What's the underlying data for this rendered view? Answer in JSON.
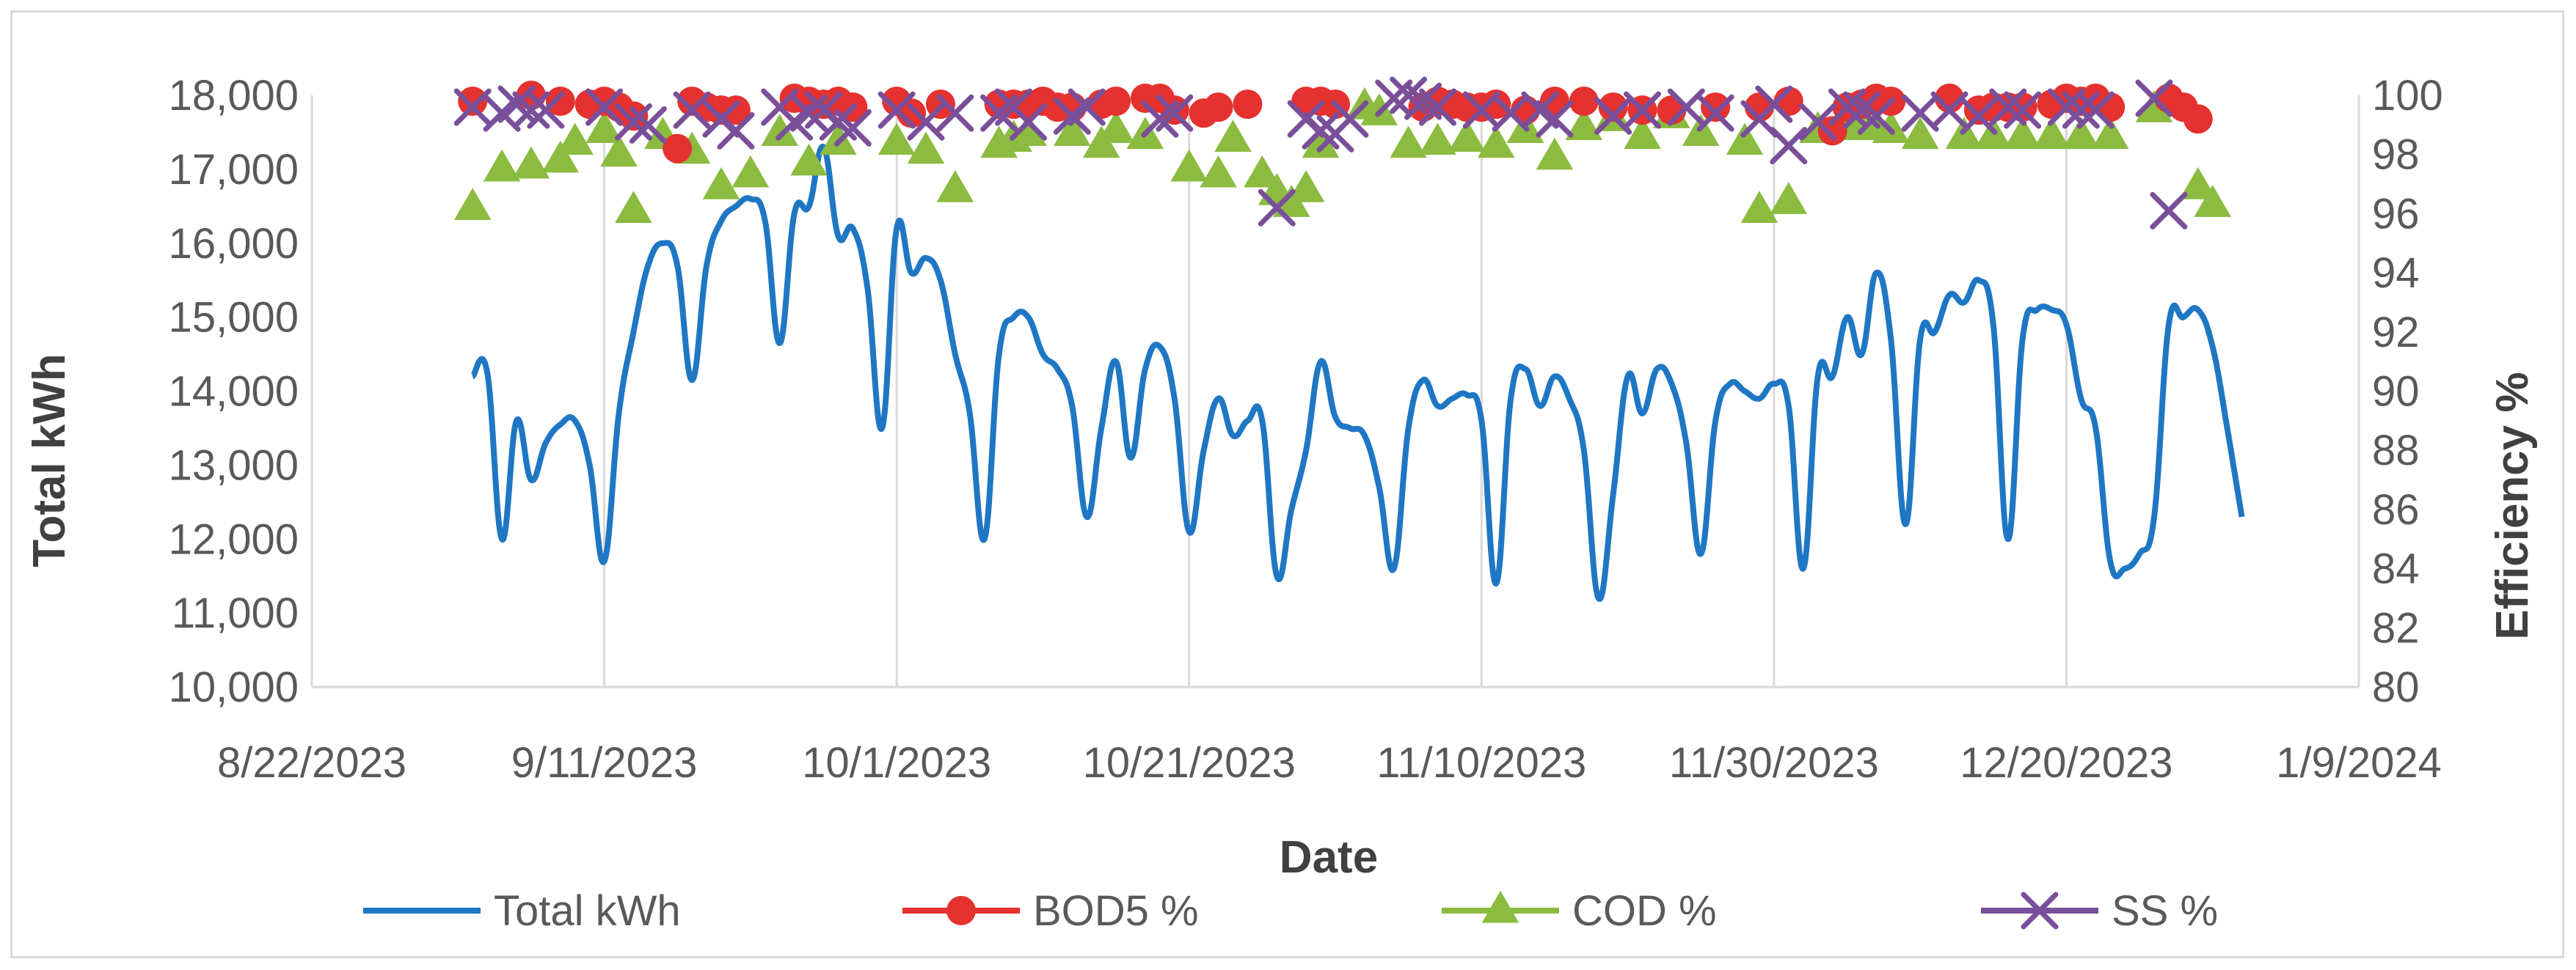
{
  "chart_data": {
    "type": "line",
    "title": "",
    "xlabel": "Date",
    "ylabel": "Total kWh",
    "y2label": "Efficiency %",
    "xlim": [
      "2023-08-22",
      "2024-01-09"
    ],
    "ylim": [
      10000,
      18000
    ],
    "y2lim": [
      80,
      100
    ],
    "grid": "vertical",
    "legend": "bottom",
    "x_ticks": [
      "8/22/2023",
      "9/11/2023",
      "10/1/2023",
      "10/21/2023",
      "11/10/2023",
      "11/30/2023",
      "12/20/2023",
      "1/9/2024"
    ],
    "y_ticks": [
      "10,000",
      "11,000",
      "12,000",
      "13,000",
      "14,000",
      "15,000",
      "16,000",
      "17,000",
      "18,000"
    ],
    "y2_ticks": [
      "80",
      "82",
      "84",
      "86",
      "88",
      "90",
      "92",
      "94",
      "96",
      "98",
      "100"
    ],
    "colors": {
      "kwh": "#1f77c4",
      "bod": "#e5312f",
      "cod": "#8bbb3f",
      "ss": "#7a4f9a",
      "grid": "#d9d9d9"
    },
    "series": [
      {
        "name": "Total kWh",
        "marker": "line",
        "x": [
          "2023-09-02",
          "2023-09-03",
          "2023-09-04",
          "2023-09-05",
          "2023-09-06",
          "2023-09-07",
          "2023-09-08",
          "2023-09-09",
          "2023-09-10",
          "2023-09-11",
          "2023-09-12",
          "2023-09-13",
          "2023-09-14",
          "2023-09-15",
          "2023-09-16",
          "2023-09-17",
          "2023-09-18",
          "2023-09-19",
          "2023-09-20",
          "2023-09-21",
          "2023-09-22",
          "2023-09-23",
          "2023-09-24",
          "2023-09-25",
          "2023-09-26",
          "2023-09-27",
          "2023-09-28",
          "2023-09-29",
          "2023-09-30",
          "2023-10-01",
          "2023-10-02",
          "2023-10-03",
          "2023-10-04",
          "2023-10-05",
          "2023-10-06",
          "2023-10-07",
          "2023-10-08",
          "2023-10-09",
          "2023-10-10",
          "2023-10-11",
          "2023-10-12",
          "2023-10-13",
          "2023-10-14",
          "2023-10-15",
          "2023-10-16",
          "2023-10-17",
          "2023-10-18",
          "2023-10-19",
          "2023-10-20",
          "2023-10-21",
          "2023-10-22",
          "2023-10-23",
          "2023-10-24",
          "2023-10-25",
          "2023-10-26",
          "2023-10-27",
          "2023-10-28",
          "2023-10-29",
          "2023-10-30",
          "2023-10-31",
          "2023-11-01",
          "2023-11-02",
          "2023-11-03",
          "2023-11-04",
          "2023-11-05",
          "2023-11-06",
          "2023-11-07",
          "2023-11-08",
          "2023-11-09",
          "2023-11-10",
          "2023-11-11",
          "2023-11-12",
          "2023-11-13",
          "2023-11-14",
          "2023-11-15",
          "2023-11-16",
          "2023-11-17",
          "2023-11-18",
          "2023-11-19",
          "2023-11-20",
          "2023-11-21",
          "2023-11-22",
          "2023-11-23",
          "2023-11-24",
          "2023-11-25",
          "2023-11-26",
          "2023-11-27",
          "2023-11-28",
          "2023-11-29",
          "2023-11-30",
          "2023-12-01",
          "2023-12-02",
          "2023-12-03",
          "2023-12-04",
          "2023-12-05",
          "2023-12-06",
          "2023-12-07",
          "2023-12-08",
          "2023-12-09",
          "2023-12-10",
          "2023-12-11",
          "2023-12-12",
          "2023-12-13",
          "2023-12-14",
          "2023-12-15",
          "2023-12-16",
          "2023-12-17",
          "2023-12-18",
          "2023-12-19",
          "2023-12-20",
          "2023-12-21",
          "2023-12-22",
          "2023-12-23",
          "2023-12-24",
          "2023-12-25",
          "2023-12-26",
          "2023-12-27",
          "2023-12-28",
          "2023-12-29",
          "2023-12-30",
          "2023-12-31",
          "2024-01-01"
        ],
        "values": [
          14200,
          14250,
          12000,
          13600,
          12800,
          13300,
          13550,
          13600,
          13000,
          11700,
          13700,
          14800,
          15700,
          16000,
          15700,
          14150,
          15700,
          16300,
          16500,
          16600,
          16300,
          14650,
          16400,
          16500,
          17300,
          16100,
          16200,
          15400,
          13500,
          16200,
          15600,
          15800,
          15500,
          14500,
          13700,
          12000,
          14500,
          15000,
          15000,
          14500,
          14300,
          13800,
          12300,
          13500,
          14400,
          13100,
          14300,
          14600,
          13900,
          12100,
          13200,
          13900,
          13400,
          13600,
          13600,
          11500,
          12400,
          13200,
          14400,
          13650,
          13500,
          13400,
          12700,
          11600,
          13500,
          14150,
          13800,
          13900,
          13950,
          13600,
          11400,
          13900,
          14300,
          13800,
          14200,
          13900,
          13200,
          11200,
          12600,
          14200,
          13700,
          14300,
          14100,
          13300,
          11800,
          13600,
          14100,
          14000,
          13900,
          14100,
          13800,
          11600,
          14200,
          14200,
          15000,
          14500,
          15600,
          14700,
          12200,
          14700,
          14800,
          15300,
          15200,
          15500,
          14900,
          12000,
          14700,
          15100,
          15100,
          14900,
          13900,
          13500,
          11700,
          11600,
          11800,
          12300,
          14900,
          15000,
          15100,
          14600,
          13500,
          12300
        ]
      },
      {
        "name": "BOD5 %",
        "marker": "circle",
        "x": [
          "2023-09-02",
          "2023-09-06",
          "2023-09-08",
          "2023-09-10",
          "2023-09-11",
          "2023-09-12",
          "2023-09-13",
          "2023-09-16",
          "2023-09-17",
          "2023-09-18",
          "2023-09-19",
          "2023-09-20",
          "2023-09-24",
          "2023-09-25",
          "2023-09-26",
          "2023-09-27",
          "2023-09-28",
          "2023-10-01",
          "2023-10-02",
          "2023-10-04",
          "2023-10-08",
          "2023-10-09",
          "2023-10-10",
          "2023-10-11",
          "2023-10-12",
          "2023-10-13",
          "2023-10-15",
          "2023-10-16",
          "2023-10-18",
          "2023-10-19",
          "2023-10-20",
          "2023-10-22",
          "2023-10-23",
          "2023-10-25",
          "2023-10-29",
          "2023-10-30",
          "2023-10-31",
          "2023-11-06",
          "2023-11-07",
          "2023-11-08",
          "2023-11-09",
          "2023-11-10",
          "2023-11-11",
          "2023-11-13",
          "2023-11-15",
          "2023-11-17",
          "2023-11-19",
          "2023-11-21",
          "2023-11-23",
          "2023-11-26",
          "2023-11-29",
          "2023-12-01",
          "2023-12-04",
          "2023-12-05",
          "2023-12-06",
          "2023-12-07",
          "2023-12-08",
          "2023-12-12",
          "2023-12-14",
          "2023-12-15",
          "2023-12-16",
          "2023-12-17",
          "2023-12-19",
          "2023-12-20",
          "2023-12-21",
          "2023-12-22",
          "2023-12-23",
          "2023-12-27",
          "2023-12-28",
          "2023-12-29"
        ],
        "values": [
          99.8,
          100,
          99.8,
          99.7,
          99.8,
          99.6,
          99.3,
          98.2,
          99.8,
          99.6,
          99.5,
          99.5,
          99.9,
          99.8,
          99.7,
          99.8,
          99.6,
          99.8,
          99.4,
          99.7,
          99.7,
          99.7,
          99.7,
          99.8,
          99.6,
          99.6,
          99.7,
          99.8,
          99.9,
          99.9,
          99.5,
          99.4,
          99.6,
          99.7,
          99.8,
          99.8,
          99.7,
          99.6,
          99.8,
          99.7,
          99.6,
          99.6,
          99.7,
          99.5,
          99.8,
          99.8,
          99.6,
          99.5,
          99.5,
          99.6,
          99.6,
          99.8,
          98.8,
          99.6,
          99.7,
          99.9,
          99.8,
          99.9,
          99.5,
          99.6,
          99.6,
          99.6,
          99.7,
          99.9,
          99.8,
          99.9,
          99.6,
          99.9,
          99.6,
          99.2
        ]
      },
      {
        "name": "COD %",
        "marker": "triangle",
        "x": [
          "2023-09-02",
          "2023-09-04",
          "2023-09-06",
          "2023-09-08",
          "2023-09-09",
          "2023-09-11",
          "2023-09-12",
          "2023-09-13",
          "2023-09-15",
          "2023-09-17",
          "2023-09-19",
          "2023-09-21",
          "2023-09-23",
          "2023-09-25",
          "2023-09-27",
          "2023-10-01",
          "2023-10-03",
          "2023-10-05",
          "2023-10-08",
          "2023-10-09",
          "2023-10-10",
          "2023-10-13",
          "2023-10-15",
          "2023-10-16",
          "2023-10-18",
          "2023-10-21",
          "2023-10-23",
          "2023-10-24",
          "2023-10-26",
          "2023-10-27",
          "2023-10-28",
          "2023-10-29",
          "2023-10-30",
          "2023-11-02",
          "2023-11-03",
          "2023-11-05",
          "2023-11-07",
          "2023-11-09",
          "2023-11-11",
          "2023-11-13",
          "2023-11-15",
          "2023-11-17",
          "2023-11-19",
          "2023-11-21",
          "2023-11-23",
          "2023-11-25",
          "2023-11-28",
          "2023-11-29",
          "2023-12-01",
          "2023-12-03",
          "2023-12-05",
          "2023-12-06",
          "2023-12-07",
          "2023-12-08",
          "2023-12-10",
          "2023-12-13",
          "2023-12-15",
          "2023-12-17",
          "2023-12-19",
          "2023-12-21",
          "2023-12-23",
          "2023-12-26",
          "2023-12-29",
          "2023-12-30"
        ],
        "values": [
          96.2,
          97.5,
          97.6,
          97.8,
          98.4,
          98.8,
          98.0,
          96.1,
          98.6,
          98.1,
          96.9,
          97.3,
          98.7,
          97.7,
          98.4,
          98.4,
          98.1,
          96.8,
          98.3,
          98.5,
          98.7,
          98.7,
          98.3,
          98.8,
          98.6,
          97.5,
          97.3,
          98.5,
          97.3,
          96.7,
          96.3,
          96.8,
          98.3,
          99.6,
          99.4,
          98.3,
          98.4,
          98.5,
          98.3,
          98.8,
          97.9,
          98.9,
          99.2,
          98.6,
          99.3,
          98.7,
          98.4,
          96.1,
          96.4,
          98.8,
          98.9,
          99.1,
          98.9,
          98.8,
          98.6,
          98.6,
          98.6,
          98.6,
          98.6,
          98.6,
          98.6,
          99.5,
          96.9,
          96.3
        ]
      },
      {
        "name": "SS %",
        "marker": "x",
        "x": [
          "2023-09-02",
          "2023-09-04",
          "2023-09-05",
          "2023-09-06",
          "2023-09-07",
          "2023-09-11",
          "2023-09-13",
          "2023-09-14",
          "2023-09-17",
          "2023-09-19",
          "2023-09-20",
          "2023-09-23",
          "2023-09-24",
          "2023-09-25",
          "2023-09-26",
          "2023-09-27",
          "2023-09-28",
          "2023-10-01",
          "2023-10-03",
          "2023-10-05",
          "2023-10-08",
          "2023-10-09",
          "2023-10-10",
          "2023-10-13",
          "2023-10-14",
          "2023-10-19",
          "2023-10-20",
          "2023-10-27",
          "2023-10-29",
          "2023-10-30",
          "2023-10-31",
          "2023-11-01",
          "2023-11-04",
          "2023-11-05",
          "2023-11-06",
          "2023-11-07",
          "2023-11-10",
          "2023-11-12",
          "2023-11-14",
          "2023-11-15",
          "2023-11-19",
          "2023-11-21",
          "2023-11-24",
          "2023-11-26",
          "2023-11-29",
          "2023-11-30",
          "2023-12-01",
          "2023-12-03",
          "2023-12-05",
          "2023-12-06",
          "2023-12-07",
          "2023-12-10",
          "2023-12-12",
          "2023-12-14",
          "2023-12-16",
          "2023-12-17",
          "2023-12-20",
          "2023-12-21",
          "2023-12-22",
          "2023-12-26",
          "2023-12-27"
        ],
        "values": [
          99.6,
          99.4,
          99.7,
          99.5,
          99.5,
          99.6,
          99.1,
          99.0,
          99.5,
          99.2,
          98.8,
          99.6,
          99.1,
          99.4,
          99.5,
          99.1,
          98.9,
          99.5,
          99.1,
          99.4,
          99.4,
          99.6,
          99.1,
          99.3,
          99.6,
          99.2,
          99.4,
          96.2,
          99.2,
          98.8,
          98.7,
          99.2,
          99.9,
          100,
          99.8,
          99.6,
          99.5,
          99.4,
          99.5,
          99.2,
          99.3,
          99.5,
          99.6,
          99.4,
          99.2,
          99.7,
          98.3,
          99.1,
          99.6,
          99.5,
          99.3,
          99.4,
          99.5,
          99.3,
          99.6,
          99.5,
          99.6,
          99.5,
          99.5,
          99.9,
          96.1
        ]
      }
    ]
  }
}
